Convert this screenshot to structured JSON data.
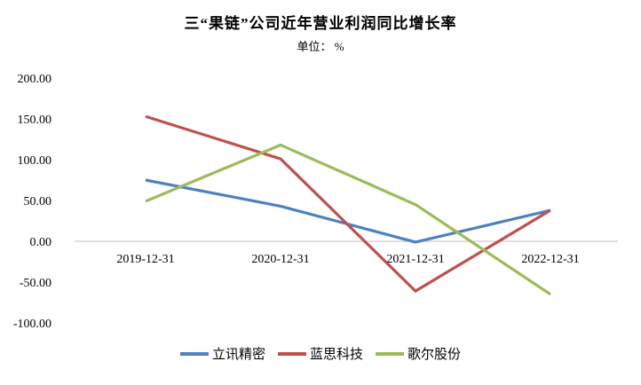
{
  "chart_data": {
    "type": "line",
    "title": "三“果链”公司近年营业利润同比增长率",
    "subtitle": "单位： %",
    "categories": [
      "2019-12-31",
      "2020-12-31",
      "2021-12-31",
      "2022-12-31"
    ],
    "series": [
      {
        "name": "立讯精密",
        "color": "#4F81BD",
        "values": [
          75,
          43,
          -1,
          38
        ]
      },
      {
        "name": "蓝思科技",
        "color": "#C0504D",
        "values": [
          153,
          101,
          -61,
          38
        ]
      },
      {
        "name": "歌尔股份",
        "color": "#9BBB59",
        "values": [
          49,
          118,
          45,
          -65
        ]
      }
    ],
    "ylim": [
      -100,
      200
    ],
    "ytick_step": 50,
    "ytick_labels": [
      "200.00",
      "150.00",
      "100.00",
      "50.00",
      "0.00",
      "-50.00",
      "-100.00"
    ],
    "grid": false,
    "legend_position": "bottom",
    "axis_color": "#BFBFBF",
    "background": "#FFFFFF"
  }
}
